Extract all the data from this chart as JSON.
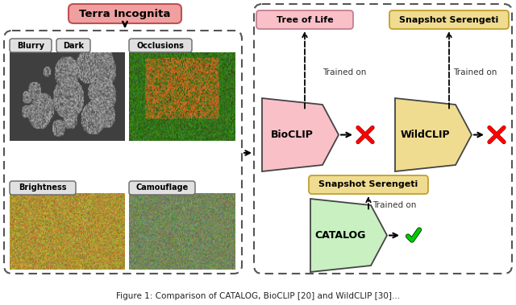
{
  "title": "Terra Incognita",
  "title_bg": "#f0a0a0",
  "title_border": "#c05050",
  "bioclip_label": "BioCLIP",
  "bioclip_color": "#f9c0c8",
  "bioclip_train_label": "Tree of Life",
  "bioclip_train_bg": "#f9c0c8",
  "bioclip_train_border": "#c08090",
  "wildclip_label": "WildCLIP",
  "wildclip_color": "#f0dc90",
  "wildclip_train_label": "Snapshot Serengeti",
  "wildclip_train_bg": "#f0dc90",
  "wildclip_train_border": "#c0a030",
  "catalog_label": "CATALOG",
  "catalog_color": "#c8f0c0",
  "catalog_train_label": "Snapshot Serengeti",
  "catalog_train_bg": "#f0dc90",
  "catalog_train_border": "#c0a030",
  "trained_on_text": "Trained on",
  "bg_color": "#ffffff",
  "caption": "Figure 1: Comparison of CATALOG, BioCLIP [20] and WildCLIP [30]..."
}
